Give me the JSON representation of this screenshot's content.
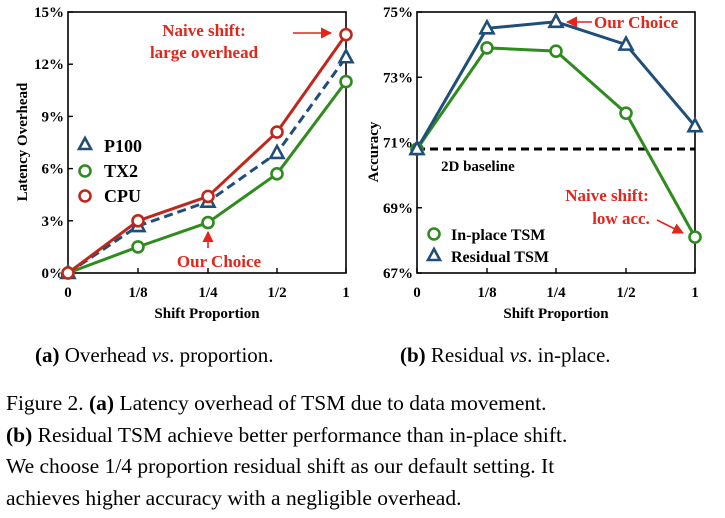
{
  "chart_data": [
    {
      "type": "line",
      "id": "a",
      "categories": [
        "0",
        "1/8",
        "1/4",
        "1/2",
        "1"
      ],
      "xlabel": "Shift Proportion",
      "ylabel": "Latency Overhead",
      "ylim": [
        0,
        15
      ],
      "yticks": [
        "0%",
        "3%",
        "6%",
        "9%",
        "12%",
        "15%"
      ],
      "ytick_values": [
        0,
        3,
        6,
        9,
        12,
        15
      ],
      "grid": false,
      "legend_position": "middle-left",
      "series": [
        {
          "name": "P100",
          "values": [
            0,
            2.7,
            4.1,
            6.9,
            12.4
          ],
          "color": "#1f4e79",
          "marker": "triangle",
          "dash": true
        },
        {
          "name": "TX2",
          "values": [
            0,
            1.5,
            2.9,
            5.7,
            11.0
          ],
          "color": "#2e8b1e",
          "marker": "circle",
          "dash": false
        },
        {
          "name": "CPU",
          "values": [
            0,
            3.0,
            4.4,
            8.1,
            13.7
          ],
          "color": "#c0271c",
          "marker": "circle",
          "dash": false
        }
      ],
      "annotations": {
        "naive_line1": "Naive shift:",
        "naive_line2": "large overhead",
        "our_choice": "Our Choice"
      }
    },
    {
      "type": "line",
      "id": "b",
      "categories": [
        "0",
        "1/8",
        "1/4",
        "1/2",
        "1"
      ],
      "xlabel": "Shift Proportion",
      "ylabel": "Accuracy",
      "ylim": [
        67,
        75
      ],
      "yticks": [
        "67%",
        "69%",
        "71%",
        "73%",
        "75%"
      ],
      "ytick_values": [
        67,
        69,
        71,
        73,
        75
      ],
      "grid": false,
      "legend_position": "bottom-left",
      "baseline": {
        "label": "2D baseline",
        "value": 70.8
      },
      "series": [
        {
          "name": "In-place TSM",
          "values": [
            70.8,
            73.9,
            73.8,
            71.9,
            68.1
          ],
          "color": "#2e8b1e",
          "marker": "circle"
        },
        {
          "name": "Residual TSM",
          "values": [
            70.8,
            74.5,
            74.7,
            74.0,
            71.5
          ],
          "color": "#1f4e79",
          "marker": "triangle"
        }
      ],
      "annotations": {
        "our_choice": "Our Choice",
        "naive_line1": "Naive shift:",
        "naive_line2": "low acc."
      }
    }
  ],
  "subcaptions": {
    "a": {
      "tag": "(a)",
      "pre": " Overhead ",
      "em": "vs",
      "post": ". proportion."
    },
    "b": {
      "tag": "(b)",
      "pre": " Residual ",
      "em": "vs",
      "post": ". in-place."
    }
  },
  "caption": {
    "line1_prefix": "Figure 2. ",
    "line1_tag": "(a)",
    "line1_text": " Latency overhead of TSM due to data movement.",
    "line2_tag": "(b)",
    "line2_text": " Residual TSM achieve better performance than in-place shift.",
    "line3": "We choose 1/4 proportion residual shift as our default setting. It",
    "line4": "achieves higher accuracy with a negligible overhead."
  },
  "colors": {
    "red": "#e1261c",
    "blue": "#1f4e79",
    "green": "#2e8b1e",
    "cpu": "#c0271c"
  }
}
